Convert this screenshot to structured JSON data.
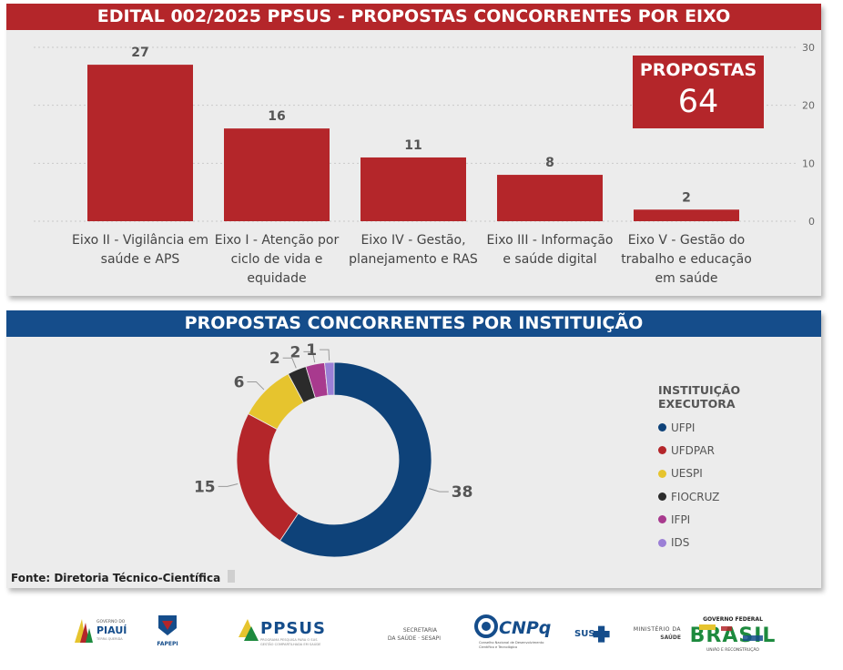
{
  "top_panel": {
    "title": "EDITAL 002/2025 PPSUS - PROPOSTAS CONCORRENTES POR EIXO",
    "kpi": {
      "label": "PROPOSTAS",
      "value": "64"
    }
  },
  "bottom_panel": {
    "title": "PROPOSTAS CONCORRENTES POR INSTITUIÇÃO",
    "legend_title": "INSTITUIÇÃO EXECUTORA",
    "source": "Fonte: Diretoria Técnico-Científica"
  },
  "chart_data": [
    {
      "type": "bar",
      "categories": [
        "Eixo II - Vigilância em saúde e APS",
        "Eixo I - Atenção por ciclo de vida e equidade",
        "Eixo IV - Gestão, planejamento e RAS",
        "Eixo III - Informação e saúde digital",
        "Eixo V - Gestão do trabalho e educação em saúde"
      ],
      "values": [
        27,
        16,
        11,
        8,
        2
      ],
      "ylim": [
        0,
        30
      ],
      "yticks": [
        0,
        10,
        20,
        30
      ],
      "color": "#b4262a",
      "grid": true
    },
    {
      "type": "pie",
      "donut": true,
      "labels": [
        "UFPI",
        "UFDPAR",
        "UESPI",
        "FIOCRUZ",
        "IFPI",
        "IDS"
      ],
      "values": [
        38,
        15,
        6,
        2,
        2,
        1
      ],
      "colors": [
        "#0e4279",
        "#b4262a",
        "#e6c42e",
        "#2b2b2b",
        "#a83a8e",
        "#9b7fd6"
      ],
      "legend": "right"
    }
  ],
  "logos": [
    {
      "name": "governo-piaui-logo",
      "text": "GOVERNO DO PIAUÍ"
    },
    {
      "name": "fapepi-logo",
      "text": "FAPEPI"
    },
    {
      "name": "ppsus-logo",
      "text": "PPSUS"
    },
    {
      "name": "sesapi-logo",
      "text": "SECRETARIA DA SAÚDE · SESAPI"
    },
    {
      "name": "cnpq-logo",
      "text": "CNPq"
    },
    {
      "name": "sus-logo",
      "text": "SUS"
    },
    {
      "name": "ministerio-saude-logo",
      "text": "MINISTÉRIO DA SAÚDE"
    },
    {
      "name": "governo-federal-logo",
      "text": "GOVERNO FEDERAL BRASIL"
    }
  ]
}
